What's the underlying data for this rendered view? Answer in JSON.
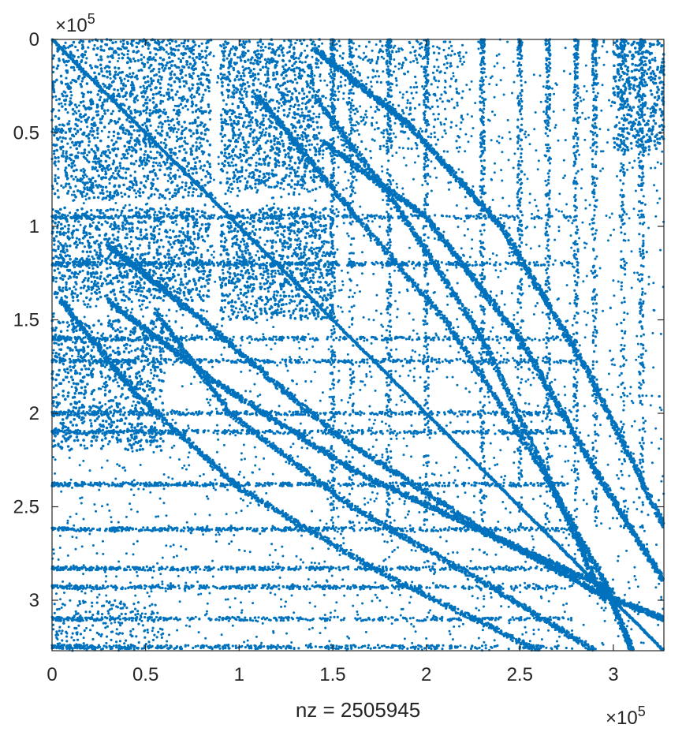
{
  "chart_data": {
    "type": "scatter",
    "title": "",
    "xlabel": "nz = 2505945",
    "ylabel": "",
    "x_multiplier": "×10",
    "x_multiplier_exp": "5",
    "y_multiplier": "×10",
    "y_multiplier_exp": "5",
    "xlim": [
      0,
      327000
    ],
    "ylim": [
      0,
      327000
    ],
    "y_axis_reversed": true,
    "xticks": [
      0,
      50000,
      100000,
      150000,
      200000,
      250000,
      300000
    ],
    "xtick_labels": [
      "0",
      "0.5",
      "1",
      "1.5",
      "2",
      "2.5",
      "3"
    ],
    "yticks": [
      0,
      50000,
      100000,
      150000,
      200000,
      250000,
      300000
    ],
    "ytick_labels": [
      "0",
      "0.5",
      "1",
      "1.5",
      "2",
      "2.5",
      "3"
    ],
    "nz": 2505945,
    "marker_color": "#0072BD",
    "grid": false,
    "dense_blocks": [
      {
        "x0": 0,
        "x1": 85000,
        "y0": 0,
        "y1": 85000
      },
      {
        "x0": 90000,
        "x1": 145000,
        "y0": 0,
        "y1": 80000
      },
      {
        "x0": 0,
        "x1": 85000,
        "y0": 90000,
        "y1": 140000
      },
      {
        "x0": 90000,
        "x1": 150000,
        "y0": 90000,
        "y1": 150000
      },
      {
        "x0": 0,
        "x1": 60000,
        "y0": 150000,
        "y1": 220000
      },
      {
        "x0": 300000,
        "x1": 327000,
        "y0": 0,
        "y1": 60000
      }
    ],
    "diagonal_bands": [
      {
        "name": "main-diagonal",
        "points": [
          [
            0,
            0
          ],
          [
            327000,
            327000
          ]
        ]
      },
      {
        "name": "upper-band-1",
        "points": [
          [
            145000,
            55000
          ],
          [
            200000,
            95000
          ],
          [
            250000,
            160000
          ],
          [
            290000,
            230000
          ],
          [
            327000,
            290000
          ]
        ]
      },
      {
        "name": "upper-band-2",
        "points": [
          [
            140000,
            5000
          ],
          [
            190000,
            45000
          ],
          [
            240000,
            100000
          ],
          [
            285000,
            175000
          ],
          [
            327000,
            260000
          ]
        ]
      },
      {
        "name": "lower-band-1",
        "points": [
          [
            30000,
            110000
          ],
          [
            80000,
            150000
          ],
          [
            150000,
            210000
          ],
          [
            230000,
            262000
          ],
          [
            290000,
            295000
          ],
          [
            327000,
            310000
          ]
        ]
      },
      {
        "name": "lower-band-2",
        "points": [
          [
            30000,
            140000
          ],
          [
            90000,
            185000
          ],
          [
            160000,
            230000
          ],
          [
            240000,
            268000
          ],
          [
            300000,
            295000
          ]
        ]
      }
    ]
  }
}
